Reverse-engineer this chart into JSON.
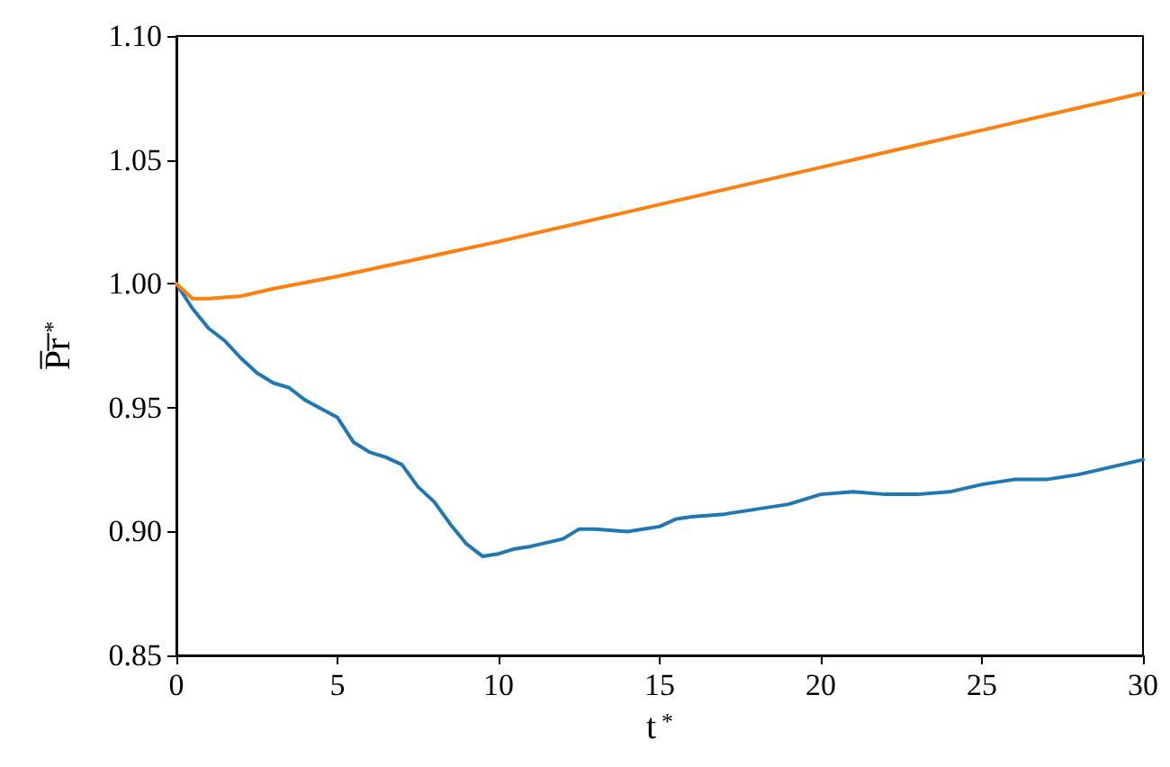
{
  "chart_data": {
    "type": "line",
    "xlabel": "t$^{*}$",
    "ylabel": "P̅r̅$^{*}$",
    "xlim": [
      0,
      30
    ],
    "xticks": [
      0,
      5,
      10,
      15,
      20,
      25,
      30
    ],
    "ylim": [
      0.85,
      1.1
    ],
    "yticks": [
      {
        "value": 0.85,
        "label": "0.85"
      },
      {
        "value": 0.9,
        "label": "0.90"
      },
      {
        "value": 0.95,
        "label": "0.95"
      },
      {
        "value": 1.0,
        "label": "1.00"
      },
      {
        "value": 1.05,
        "label": "1.05"
      },
      {
        "value": 1.1,
        "label": "1.10"
      }
    ],
    "grid": false,
    "marker": "none",
    "line_style": "solid",
    "series": [
      {
        "color": "#1f77b4",
        "x": [
          0,
          0.5,
          1,
          1.5,
          2,
          2.5,
          3,
          3.5,
          4,
          5,
          5.5,
          6,
          6.5,
          7,
          7.5,
          8,
          8.5,
          9,
          9.5,
          10,
          10.5,
          11,
          12,
          12.5,
          13,
          14,
          15,
          15.5,
          16,
          17,
          18,
          19,
          20,
          21,
          22,
          23,
          24,
          25,
          26,
          27,
          28,
          29,
          30
        ],
        "values": [
          1.0,
          0.99,
          0.982,
          0.977,
          0.97,
          0.964,
          0.96,
          0.958,
          0.953,
          0.946,
          0.936,
          0.932,
          0.93,
          0.927,
          0.918,
          0.912,
          0.903,
          0.895,
          0.89,
          0.891,
          0.893,
          0.894,
          0.897,
          0.901,
          0.901,
          0.9,
          0.902,
          0.905,
          0.906,
          0.907,
          0.909,
          0.911,
          0.915,
          0.916,
          0.915,
          0.915,
          0.916,
          0.919,
          0.921,
          0.921,
          0.923,
          0.926,
          0.929
        ]
      },
      {
        "color": "#ff7f0e",
        "x": [
          0,
          0.5,
          1,
          2,
          3,
          5,
          10,
          15,
          20,
          25,
          30
        ],
        "values": [
          1.0,
          0.994,
          0.994,
          0.995,
          0.998,
          1.003,
          1.017,
          1.032,
          1.047,
          1.062,
          1.077
        ]
      }
    ]
  }
}
